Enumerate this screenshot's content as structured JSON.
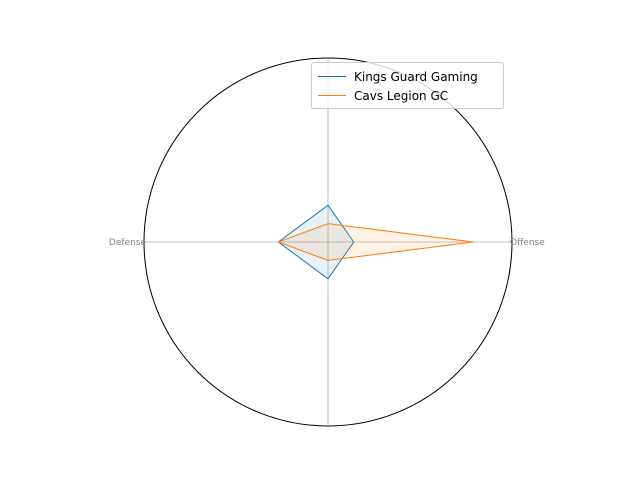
{
  "chart_data": {
    "type": "radar",
    "axes": [
      "Offense",
      "",
      "Defense",
      ""
    ],
    "rlim": [
      0,
      1
    ],
    "grid": true,
    "legend_position": "upper-right",
    "series": [
      {
        "name": "Kings Guard Gaming",
        "color": "#1f77b4",
        "fill": "#1f77b4",
        "values": [
          0.14,
          0.2,
          0.27,
          0.2
        ]
      },
      {
        "name": "Cavs Legion GC",
        "color": "#ff7f0e",
        "fill": "#ff7f0e",
        "values": [
          0.79,
          0.1,
          0.27,
          0.1
        ]
      }
    ]
  }
}
